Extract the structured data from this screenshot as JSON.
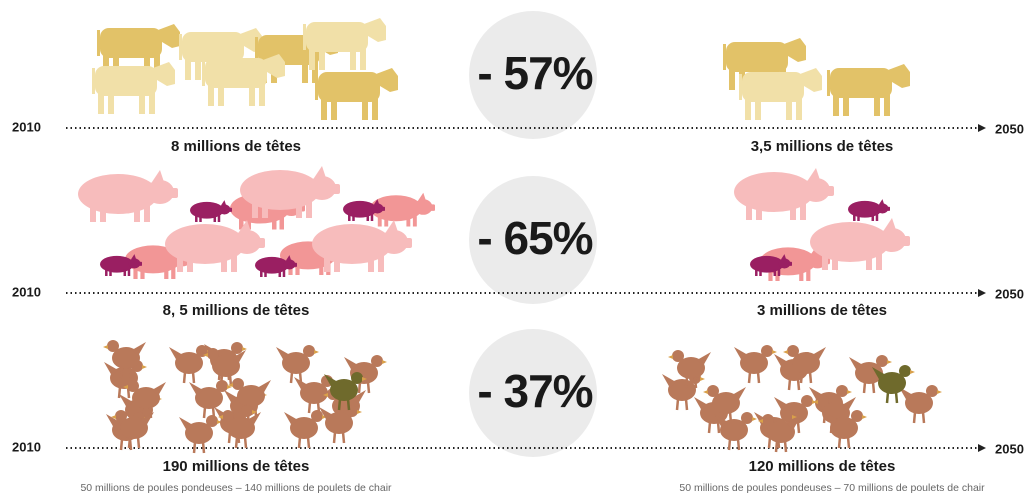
{
  "rows": [
    {
      "start_year": "2010",
      "end_year": "2050",
      "before": "8 millions de têtes",
      "after": "3,5 millions de têtes",
      "change": "- 57%"
    },
    {
      "start_year": "2010",
      "end_year": "2050",
      "before": "8, 5 millions de têtes",
      "after": "3 millions de têtes",
      "change": "- 65%"
    },
    {
      "start_year": "2010",
      "end_year": "2050",
      "before": "190 millions de têtes",
      "after": "120 millions de têtes",
      "change": "- 37%",
      "before_note": "50 millions de poules pondeuses – 140 millions de poulets de chair",
      "after_note": "50 millions de poules pondeuses – 70 millions de poulets de chair"
    }
  ]
}
